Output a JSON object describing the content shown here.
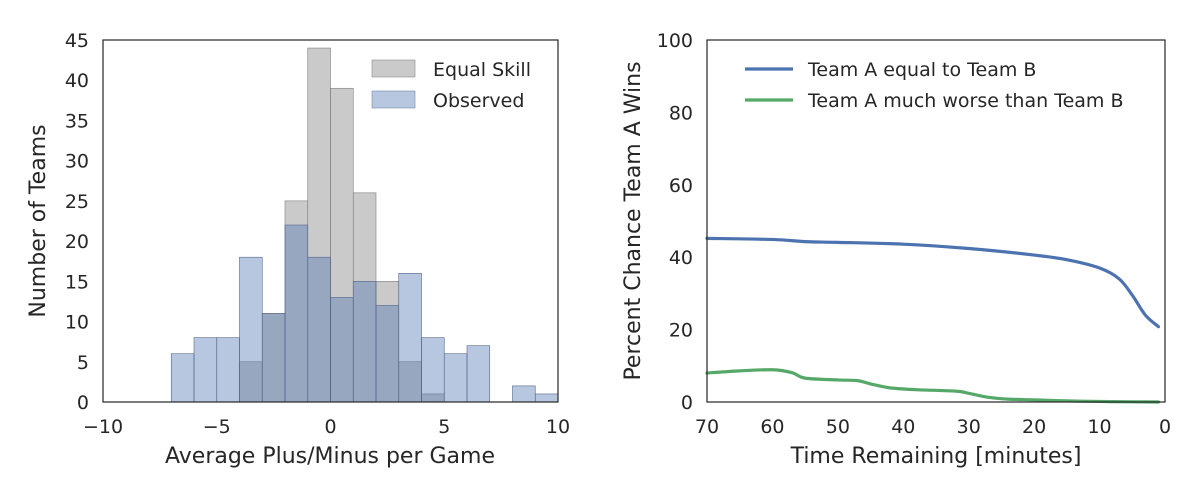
{
  "chart_data": [
    {
      "type": "bar",
      "subtype": "overlaid-histogram",
      "xlabel": "Average Plus/Minus per Game",
      "ylabel": "Number of Teams",
      "xlim": [
        -10,
        10
      ],
      "ylim": [
        0,
        45
      ],
      "xticks": [
        -10,
        -5,
        0,
        5,
        10
      ],
      "xtick_labels": [
        "−10",
        "−5",
        "0",
        "5",
        "10"
      ],
      "yticks": [
        0,
        5,
        10,
        15,
        20,
        25,
        30,
        35,
        40,
        45
      ],
      "ytick_labels": [
        "0",
        "5",
        "10",
        "15",
        "20",
        "25",
        "30",
        "35",
        "40",
        "45"
      ],
      "grid": false,
      "legend_position": "top-right",
      "series": [
        {
          "name": "Equal Skill",
          "color": "#a6a6a6",
          "bins": [
            [
              -4,
              -3
            ],
            [
              -3,
              -2
            ],
            [
              -2,
              -1
            ],
            [
              -1,
              0
            ],
            [
              0,
              1
            ],
            [
              1,
              2
            ],
            [
              2,
              3
            ],
            [
              3,
              4
            ],
            [
              4,
              5
            ]
          ],
          "values": [
            5,
            11,
            25,
            44,
            39,
            26,
            15,
            5,
            1
          ]
        },
        {
          "name": "Observed",
          "color": "#4c72b0",
          "bins": [
            [
              -7,
              -6
            ],
            [
              -6,
              -5
            ],
            [
              -5,
              -4
            ],
            [
              -4,
              -3
            ],
            [
              -3,
              -2
            ],
            [
              -2,
              -1
            ],
            [
              -1,
              0
            ],
            [
              0,
              1
            ],
            [
              1,
              2
            ],
            [
              2,
              3
            ],
            [
              3,
              4
            ],
            [
              4,
              5
            ],
            [
              5,
              6
            ],
            [
              6,
              7
            ],
            [
              7,
              8
            ],
            [
              8,
              9
            ],
            [
              9,
              10
            ]
          ],
          "values": [
            6,
            8,
            8,
            18,
            11,
            22,
            18,
            13,
            15,
            12,
            16,
            8,
            6,
            7,
            0,
            2,
            1
          ]
        }
      ]
    },
    {
      "type": "line",
      "xlabel": "Time Remaining [minutes]",
      "ylabel": "Percent Chance Team A Wins",
      "xlim": [
        70,
        0
      ],
      "ylim": [
        0,
        100
      ],
      "x_reversed": true,
      "xticks": [
        70,
        60,
        50,
        40,
        30,
        20,
        10,
        0
      ],
      "xtick_labels": [
        "70",
        "60",
        "50",
        "40",
        "30",
        "20",
        "10",
        "0"
      ],
      "yticks": [
        0,
        20,
        40,
        60,
        80,
        100
      ],
      "ytick_labels": [
        "0",
        "20",
        "40",
        "60",
        "80",
        "100"
      ],
      "grid": false,
      "legend_position": "top-right",
      "series": [
        {
          "name": "Team A equal to Team B",
          "color": "#4c72b0",
          "x": [
            70,
            60,
            55,
            50,
            40,
            30,
            20,
            15,
            10,
            7,
            5,
            3,
            1
          ],
          "y": [
            45.2,
            44.9,
            44.3,
            44.1,
            43.6,
            42.4,
            40.6,
            39.3,
            37.0,
            34.0,
            29.5,
            24.0,
            20.8
          ]
        },
        {
          "name": "Team A much worse than Team B",
          "color": "#55a868",
          "x": [
            70,
            65,
            60,
            57,
            55,
            50,
            47,
            45,
            42,
            38,
            32,
            30,
            27,
            24,
            20,
            15,
            10,
            5,
            1
          ],
          "y": [
            8.0,
            8.6,
            8.9,
            8.1,
            6.6,
            6.1,
            5.9,
            5.0,
            3.9,
            3.4,
            3.0,
            2.4,
            1.3,
            0.8,
            0.6,
            0.3,
            0.15,
            0.05,
            0.0
          ]
        }
      ]
    }
  ]
}
